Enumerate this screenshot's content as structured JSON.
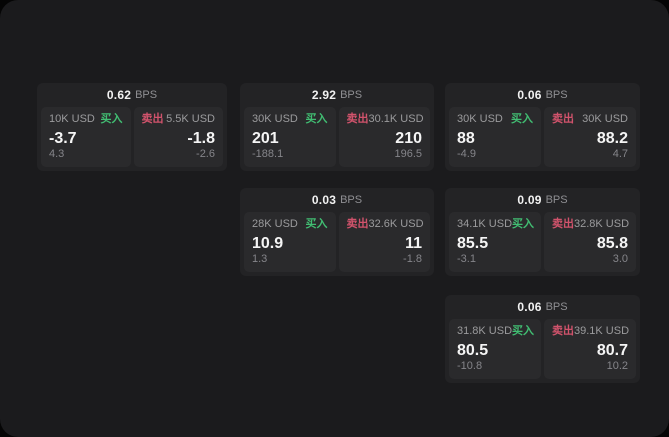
{
  "theme": {
    "outside_bg": "#050505",
    "window_bg": "#1b1b1d",
    "card_bg": "#232325",
    "panel_bg": "#2a2a2c",
    "buy_color": "#41bd72",
    "sell_color": "#d1536c",
    "label_gray": "#9b9b9d",
    "delta_gray": "#85858a",
    "value_white": "#f5f5f5"
  },
  "labels": {
    "buy": "买入",
    "sell": "卖出",
    "bps_unit": "BPS"
  },
  "cards": [
    {
      "bps": "0.62",
      "buy": {
        "size": "10K USD",
        "price": "-3.7",
        "delta": "4.3"
      },
      "sell": {
        "size": "5.5K USD",
        "price": "-1.8",
        "delta": "-2.6"
      }
    },
    {
      "bps": "2.92",
      "buy": {
        "size": "30K USD",
        "price": "201",
        "delta": "-188.1"
      },
      "sell": {
        "size": "30.1K USD",
        "price": "210",
        "delta": "196.5"
      }
    },
    {
      "bps": "0.06",
      "buy": {
        "size": "30K USD",
        "price": "88",
        "delta": "-4.9"
      },
      "sell": {
        "size": "30K USD",
        "price": "88.2",
        "delta": "4.7"
      }
    },
    {
      "bps": "0.03",
      "buy": {
        "size": "28K USD",
        "price": "10.9",
        "delta": "1.3"
      },
      "sell": {
        "size": "32.6K USD",
        "price": "11",
        "delta": "-1.8"
      }
    },
    {
      "bps": "0.09",
      "buy": {
        "size": "34.1K USD",
        "price": "85.5",
        "delta": "-3.1"
      },
      "sell": {
        "size": "32.8K USD",
        "price": "85.8",
        "delta": "3.0"
      }
    },
    {
      "bps": "0.06",
      "buy": {
        "size": "31.8K USD",
        "price": "80.5",
        "delta": "-10.8"
      },
      "sell": {
        "size": "39.1K USD",
        "price": "80.7",
        "delta": "10.2"
      }
    }
  ]
}
